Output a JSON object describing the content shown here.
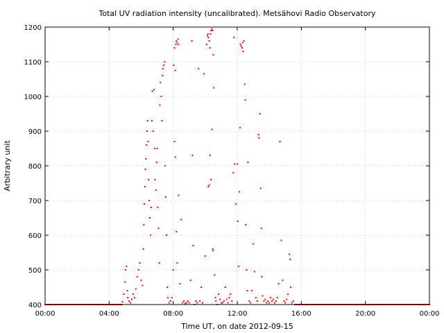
{
  "chart_data": {
    "type": "scatter",
    "title": "Total UV radiation intensity (uncalibrated). Metsähovi Radio Observatory",
    "xlabel": "Time UT, on date 2012-09-15",
    "ylabel": "Arbitrary unit",
    "xlim": [
      "00:00",
      "24:00"
    ],
    "ylim": [
      400,
      1200
    ],
    "x_ticks": [
      "00:00",
      "04:00",
      "08:00",
      "12:00",
      "16:00",
      "20:00",
      "00:00"
    ],
    "y_ticks": [
      400,
      500,
      600,
      700,
      800,
      900,
      1000,
      1100,
      1200
    ],
    "grid": true,
    "legend": "none",
    "marker_color": "#ff0000",
    "baseline_value": 400,
    "baseline_ranges": [
      [
        "00:00",
        "04:48"
      ],
      [
        "15:36",
        "24:00"
      ]
    ],
    "series": [
      {
        "values": [
          [
            "04:50",
            408
          ],
          [
            "04:55",
            430
          ],
          [
            "05:00",
            465
          ],
          [
            "05:02",
            500
          ],
          [
            "05:05",
            510
          ],
          [
            "05:08",
            440
          ],
          [
            "05:10",
            420
          ],
          [
            "05:15",
            410
          ],
          [
            "05:20",
            405
          ],
          [
            "05:25",
            415
          ],
          [
            "05:30",
            430
          ],
          [
            "05:35",
            420
          ],
          [
            "05:40",
            445
          ],
          [
            "05:45",
            480
          ],
          [
            "05:50",
            500
          ],
          [
            "05:55",
            520
          ],
          [
            "06:00",
            470
          ],
          [
            "06:05",
            455
          ],
          [
            "06:08",
            560
          ],
          [
            "06:10",
            630
          ],
          [
            "06:12",
            690
          ],
          [
            "06:14",
            740
          ],
          [
            "06:16",
            790
          ],
          [
            "06:18",
            820
          ],
          [
            "06:20",
            860
          ],
          [
            "06:22",
            900
          ],
          [
            "06:24",
            930
          ],
          [
            "06:26",
            870
          ],
          [
            "06:28",
            760
          ],
          [
            "06:30",
            700
          ],
          [
            "06:32",
            650
          ],
          [
            "06:35",
            600
          ],
          [
            "06:38",
            680
          ],
          [
            "06:40",
            930
          ],
          [
            "06:42",
            1015
          ],
          [
            "06:45",
            900
          ],
          [
            "06:48",
            1020
          ],
          [
            "06:50",
            850
          ],
          [
            "06:52",
            760
          ],
          [
            "06:55",
            730
          ],
          [
            "06:58",
            810
          ],
          [
            "07:00",
            850
          ],
          [
            "07:02",
            680
          ],
          [
            "07:05",
            620
          ],
          [
            "07:08",
            520
          ],
          [
            "07:10",
            975
          ],
          [
            "07:12",
            1040
          ],
          [
            "07:15",
            1000
          ],
          [
            "07:18",
            930
          ],
          [
            "07:20",
            1060
          ],
          [
            "07:22",
            1080
          ],
          [
            "07:25",
            1090
          ],
          [
            "07:28",
            1100
          ],
          [
            "07:30",
            800
          ],
          [
            "07:32",
            710
          ],
          [
            "07:35",
            600
          ],
          [
            "07:38",
            450
          ],
          [
            "07:40",
            420
          ],
          [
            "07:45",
            405
          ],
          [
            "07:50",
            410
          ],
          [
            "07:55",
            420
          ],
          [
            "08:00",
            500
          ],
          [
            "08:02",
            1090
          ],
          [
            "08:05",
            1140
          ],
          [
            "08:08",
            1075
          ],
          [
            "08:10",
            1150
          ],
          [
            "08:12",
            1160
          ],
          [
            "08:15",
            1155
          ],
          [
            "08:18",
            1165
          ],
          [
            "08:20",
            1150
          ],
          [
            "08:05",
            870
          ],
          [
            "08:08",
            825
          ],
          [
            "08:12",
            610
          ],
          [
            "08:15",
            520
          ],
          [
            "08:20",
            715
          ],
          [
            "08:25",
            460
          ],
          [
            "08:30",
            645
          ],
          [
            "08:35",
            405
          ],
          [
            "08:40",
            410
          ],
          [
            "08:45",
            403
          ],
          [
            "08:50",
            405
          ],
          [
            "08:55",
            410
          ],
          [
            "09:00",
            405
          ],
          [
            "09:05",
            470
          ],
          [
            "09:10",
            1160
          ],
          [
            "09:12",
            830
          ],
          [
            "09:15",
            570
          ],
          [
            "09:20",
            400
          ],
          [
            "09:25",
            410
          ],
          [
            "09:30",
            405
          ],
          [
            "09:35",
            1080
          ],
          [
            "09:40",
            410
          ],
          [
            "09:45",
            450
          ],
          [
            "09:50",
            405
          ],
          [
            "09:55",
            1065
          ],
          [
            "10:00",
            540
          ],
          [
            "10:05",
            1150
          ],
          [
            "10:08",
            1175
          ],
          [
            "10:10",
            1180
          ],
          [
            "10:12",
            1170
          ],
          [
            "10:15",
            1160
          ],
          [
            "10:18",
            1140
          ],
          [
            "10:20",
            1180
          ],
          [
            "10:22",
            1190
          ],
          [
            "10:25",
            1195
          ],
          [
            "10:28",
            1190
          ],
          [
            "10:30",
            1120
          ],
          [
            "10:12",
            740
          ],
          [
            "10:15",
            745
          ],
          [
            "10:18",
            830
          ],
          [
            "10:22",
            760
          ],
          [
            "10:25",
            905
          ],
          [
            "10:28",
            560
          ],
          [
            "10:30",
            555
          ],
          [
            "10:32",
            1025
          ],
          [
            "10:35",
            485
          ],
          [
            "10:38",
            420
          ],
          [
            "10:40",
            410
          ],
          [
            "10:45",
            400
          ],
          [
            "10:50",
            430
          ],
          [
            "10:55",
            415
          ],
          [
            "11:00",
            405
          ],
          [
            "11:05",
            405
          ],
          [
            "11:10",
            410
          ],
          [
            "11:15",
            450
          ],
          [
            "11:20",
            415
          ],
          [
            "11:25",
            405
          ],
          [
            "11:30",
            420
          ],
          [
            "11:35",
            430
          ],
          [
            "11:40",
            410
          ],
          [
            "11:45",
            780
          ],
          [
            "11:48",
            1170
          ],
          [
            "11:50",
            805
          ],
          [
            "11:55",
            690
          ],
          [
            "12:00",
            805
          ],
          [
            "12:02",
            640
          ],
          [
            "12:05",
            510
          ],
          [
            "12:08",
            725
          ],
          [
            "12:10",
            910
          ],
          [
            "12:12",
            1150
          ],
          [
            "12:15",
            1145
          ],
          [
            "12:18",
            1140
          ],
          [
            "12:20",
            1155
          ],
          [
            "12:22",
            1130
          ],
          [
            "12:25",
            1160
          ],
          [
            "12:28",
            1035
          ],
          [
            "12:30",
            990
          ],
          [
            "12:32",
            630
          ],
          [
            "12:35",
            500
          ],
          [
            "12:38",
            440
          ],
          [
            "12:40",
            810
          ],
          [
            "12:45",
            410
          ],
          [
            "12:50",
            405
          ],
          [
            "12:55",
            440
          ],
          [
            "13:00",
            575
          ],
          [
            "13:05",
            495
          ],
          [
            "13:10",
            420
          ],
          [
            "13:15",
            410
          ],
          [
            "13:20",
            890
          ],
          [
            "13:22",
            880
          ],
          [
            "13:25",
            950
          ],
          [
            "13:28",
            735
          ],
          [
            "13:30",
            620
          ],
          [
            "13:32",
            480
          ],
          [
            "13:35",
            425
          ],
          [
            "13:40",
            410
          ],
          [
            "13:45",
            415
          ],
          [
            "13:50",
            405
          ],
          [
            "13:55",
            410
          ],
          [
            "14:00",
            405
          ],
          [
            "14:05",
            420
          ],
          [
            "14:10",
            410
          ],
          [
            "14:15",
            415
          ],
          [
            "14:20",
            405
          ],
          [
            "14:25",
            410
          ],
          [
            "14:30",
            420
          ],
          [
            "14:35",
            460
          ],
          [
            "14:40",
            870
          ],
          [
            "14:45",
            585
          ],
          [
            "14:50",
            470
          ],
          [
            "14:55",
            410
          ],
          [
            "15:00",
            405
          ],
          [
            "15:05",
            415
          ],
          [
            "15:10",
            430
          ],
          [
            "15:15",
            545
          ],
          [
            "15:18",
            530
          ],
          [
            "15:20",
            450
          ],
          [
            "15:25",
            405
          ],
          [
            "15:30",
            410
          ]
        ]
      }
    ]
  }
}
